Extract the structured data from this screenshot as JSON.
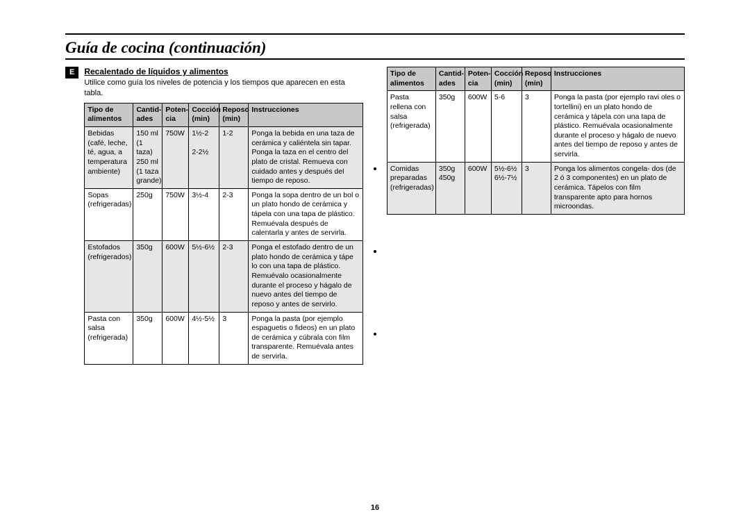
{
  "page": {
    "title": "Guía de cocina (continuación)",
    "lang_badge": "E",
    "page_number": "16"
  },
  "section": {
    "heading": "Recalentado de líquidos y alimentos",
    "description": "Utilice como guía los niveles de potencia y los tiempos que aparecen en esta tabla."
  },
  "table": {
    "headers": {
      "tipo_l1": "Tipo de",
      "tipo_l2": "alimentos",
      "cant_l1": "Cantid-",
      "cant_l2": "ades",
      "pot_l1": "Poten-",
      "pot_l2": "cia",
      "coc_l1": "Cocción",
      "coc_l2": "(min)",
      "rep_l1": "Reposo",
      "rep_l2": "(min)",
      "inst": "Instrucciones"
    }
  },
  "rows_left": [
    {
      "tipo": "Bebidas (café, leche, té, agua, a temperatura ambiente)",
      "cant": "150 ml (1 taza) 250 ml (1 taza grande)",
      "pot": "750W",
      "coc": "1½-2\n\n2-2½",
      "rep": "1-2",
      "inst": "Ponga la bebida en una taza de cerámica y caliéntela sin tapar. Ponga la taza en el centro del plato de cristal. Remueva con cuidado antes y después del tiempo de reposo."
    },
    {
      "tipo": "Sopas (refrigeradas)",
      "cant": "250g",
      "pot": "750W",
      "coc": "3½-4",
      "rep": "2-3",
      "inst": "Ponga la sopa dentro de un bol o un plato hondo de cerámica y tápela con una tapa de plástico. Remuévala después de calentarla y antes de servirla."
    },
    {
      "tipo": "Estofados (refrigerados)",
      "cant": "350g",
      "pot": "600W",
      "coc": "5½-6½",
      "rep": "2-3",
      "inst": "Ponga el estofado dentro de un plato hondo de cerámica y tápe lo con una tapa de plástico.\nRemuévalo ocasionalmente durante el proceso y hágalo de nuevo antes del tiempo de reposo y antes de servirlo."
    },
    {
      "tipo": "Pasta con salsa (refrigerada)",
      "cant": "350g",
      "pot": "600W",
      "coc": "4½-5½",
      "rep": "3",
      "inst": "Ponga la pasta (por ejemplo espaguetis o fideos) en un plato de cerámica y cúbrala con film transparente. Remuévala antes de servirla."
    }
  ],
  "rows_right": [
    {
      "tipo": "Pasta rellena con salsa (refrigerada)",
      "cant": "350g",
      "pot": "600W",
      "coc": "5-6",
      "rep": "3",
      "inst": "Ponga la pasta (por ejemplo ravi oles o tortellini) en un plato hondo de cerámica y tápela con una tapa de plástico. Remuévala ocasionalmente durante el proceso y hágalo de nuevo antes del tiempo de reposo y antes de servirla."
    },
    {
      "tipo": "Comidas preparadas (refrigeradas)",
      "cant": "350g 450g",
      "pot": "600W",
      "coc": "5½-6½ 6½-7½",
      "rep": "3",
      "inst": "Ponga los alimentos congela- dos (de 2 ó 3 componentes) en un plato de cerámica. Tápelos con film transparente apto para hornos microondas."
    }
  ],
  "colors": {
    "header_bg": "#c8c8c8",
    "alt_bg": "#e6e6e6",
    "border": "#000000"
  }
}
